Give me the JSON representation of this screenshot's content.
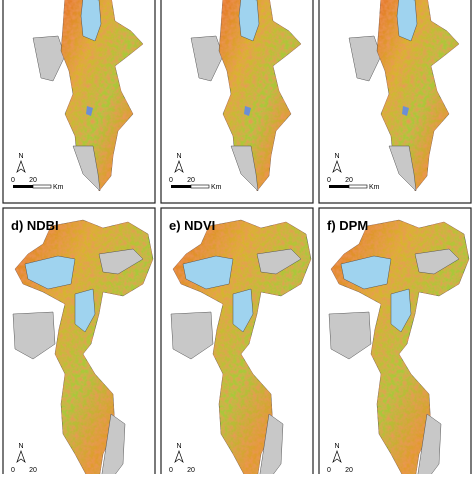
{
  "panels": [
    {
      "north": "N",
      "scale_start": "0",
      "scale_end": "20",
      "scale_unit": "Km"
    },
    {
      "north": "N",
      "scale_start": "0",
      "scale_end": "20",
      "scale_unit": "Km"
    },
    {
      "north": "N",
      "scale_start": "0",
      "scale_end": "20",
      "scale_unit": "Km"
    },
    {
      "label": "d) NDBI",
      "north": "N",
      "scale_start": "0",
      "scale_end": "20"
    },
    {
      "label": "e) NDVI",
      "north": "N",
      "scale_start": "0",
      "scale_end": "20"
    },
    {
      "label": "f) DPM",
      "north": "N",
      "scale_start": "0",
      "scale_end": "20"
    }
  ]
}
